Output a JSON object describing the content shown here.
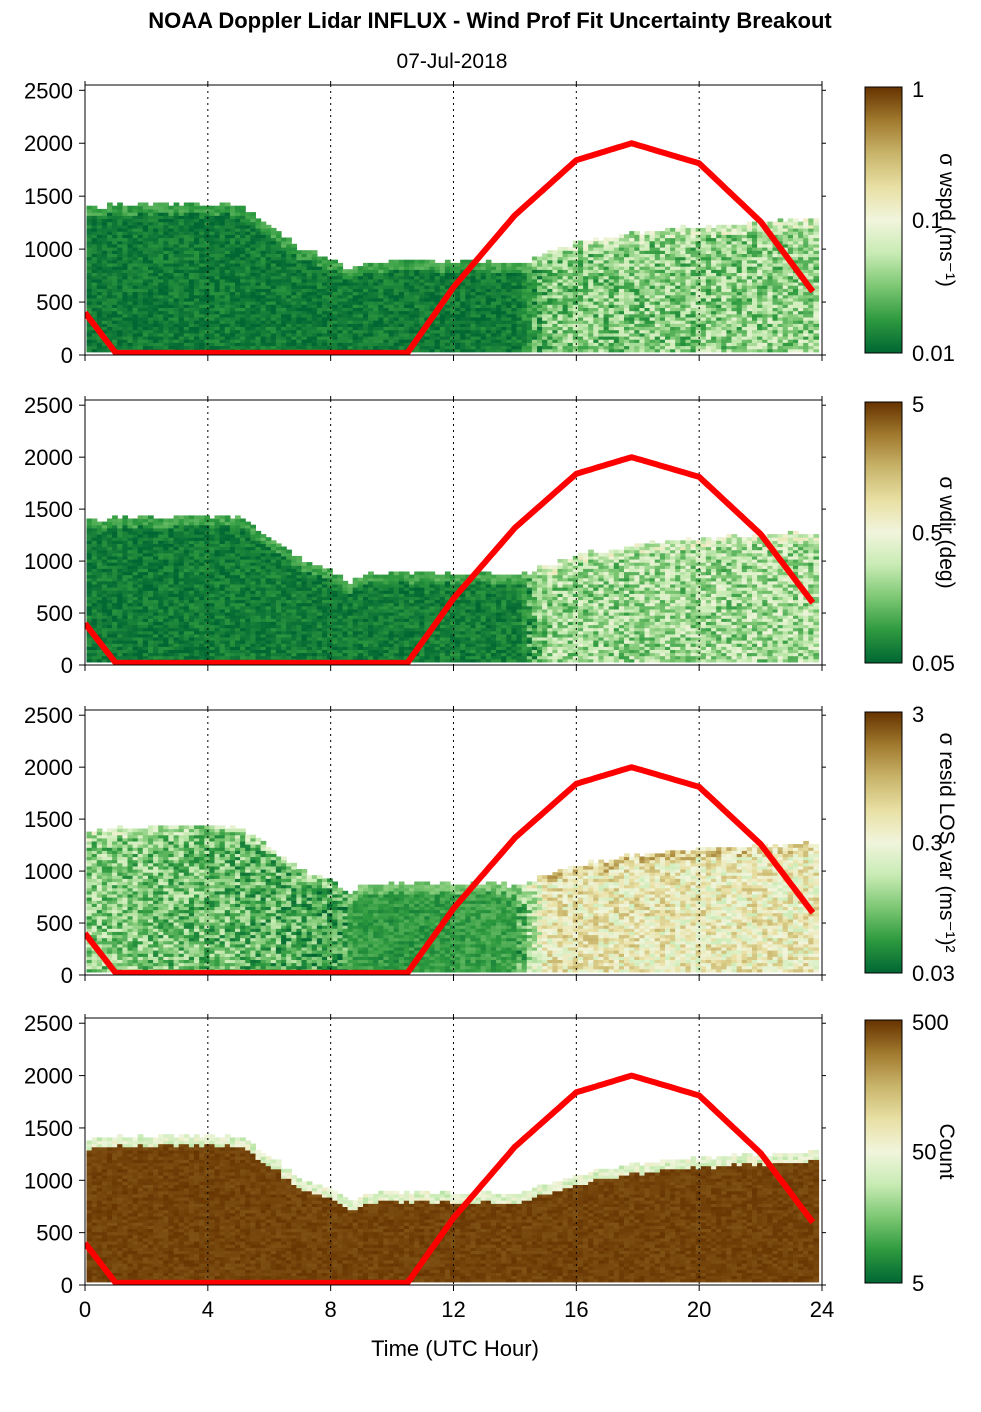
{
  "title": "NOAA Doppler Lidar INFLUX - Wind Prof Fit Uncertainty Breakout",
  "subtitle": "07-Jul-2018",
  "xlabel": "Time (UTC Hour)",
  "colors": {
    "sun_curve": "#ff0000",
    "colormap": [
      "#006633",
      "#2e9a3f",
      "#7cc773",
      "#c8ebb4",
      "#f1f5dc",
      "#e8dfa3",
      "#c8b46a",
      "#a0792e",
      "#663300"
    ]
  },
  "chart_data": [
    {
      "type": "heatmap",
      "panel": 1,
      "ylabel": "",
      "xlim": [
        0,
        24
      ],
      "ylim": [
        0,
        2550
      ],
      "xticks": [
        "0",
        "4",
        "8",
        "12",
        "16",
        "20",
        "24"
      ],
      "yticks": [
        "0",
        "500",
        "1000",
        "1500",
        "2000",
        "2500"
      ],
      "colorbar_label": "σ wspd (ms⁻¹)",
      "colorbar_ticks": [
        "1",
        "0.1",
        "0.01"
      ],
      "grid": "vertical dotted at 4-hour intervals",
      "data_top_height": {
        "time": [
          0,
          1,
          2,
          3,
          4,
          5,
          6,
          7,
          8,
          8.5,
          9,
          10,
          11,
          12,
          13,
          14,
          15,
          16,
          17,
          18,
          19,
          20,
          21,
          22,
          23,
          23.8
        ],
        "height": [
          1380,
          1400,
          1410,
          1410,
          1420,
          1400,
          1200,
          980,
          900,
          780,
          860,
          870,
          880,
          860,
          870,
          850,
          950,
          1050,
          1100,
          1150,
          1180,
          1200,
          1220,
          1240,
          1250,
          1260
        ]
      },
      "fill_level": {
        "time": [
          0,
          14,
          15,
          24
        ],
        "value": [
          0.05,
          0.05,
          0.25,
          0.3
        ]
      },
      "sun_elevation_curve": {
        "time": [
          0,
          1,
          2,
          4,
          6,
          8,
          10,
          10.5,
          12,
          14,
          16,
          17.8,
          20,
          22,
          23.8
        ],
        "height": [
          400,
          20,
          20,
          20,
          20,
          20,
          20,
          20,
          640,
          1320,
          1840,
          2000,
          1810,
          1260,
          560
        ]
      }
    },
    {
      "type": "heatmap",
      "panel": 2,
      "ylabel": "",
      "xlim": [
        0,
        24
      ],
      "ylim": [
        0,
        2550
      ],
      "xticks": [
        "0",
        "4",
        "8",
        "12",
        "16",
        "20",
        "24"
      ],
      "yticks": [
        "0",
        "500",
        "1000",
        "1500",
        "2000",
        "2500"
      ],
      "colorbar_label": "σ wdir (deg)",
      "colorbar_ticks": [
        "5",
        "0.5",
        "0.05"
      ],
      "grid": "vertical dotted at 4-hour intervals",
      "data_top_height": {
        "time": [
          0,
          1,
          2,
          3,
          4,
          5,
          6,
          7,
          8,
          8.5,
          9,
          10,
          11,
          12,
          13,
          14,
          15,
          16,
          17,
          18,
          19,
          20,
          21,
          22,
          23,
          23.8
        ],
        "height": [
          1380,
          1400,
          1410,
          1410,
          1420,
          1400,
          1200,
          980,
          900,
          780,
          860,
          870,
          880,
          860,
          870,
          850,
          950,
          1050,
          1100,
          1150,
          1180,
          1200,
          1220,
          1240,
          1250,
          1260
        ]
      },
      "fill_level": {
        "time": [
          0,
          14,
          15,
          24
        ],
        "value": [
          0.05,
          0.06,
          0.3,
          0.32
        ]
      },
      "sun_elevation_curve": {
        "time": [
          0,
          1,
          2,
          4,
          6,
          8,
          10,
          10.5,
          12,
          14,
          16,
          17.8,
          20,
          22,
          23.8
        ],
        "height": [
          400,
          20,
          20,
          20,
          20,
          20,
          20,
          20,
          640,
          1320,
          1840,
          2000,
          1810,
          1260,
          560
        ]
      }
    },
    {
      "type": "heatmap",
      "panel": 3,
      "ylabel": "",
      "xlim": [
        0,
        24
      ],
      "ylim": [
        0,
        2550
      ],
      "xticks": [
        "0",
        "4",
        "8",
        "12",
        "16",
        "20",
        "24"
      ],
      "yticks": [
        "0",
        "500",
        "1000",
        "1500",
        "2000",
        "2500"
      ],
      "colorbar_label": "σ resid LOS var (ms⁻¹)²",
      "colorbar_ticks": [
        "3",
        "0.3",
        "0.03"
      ],
      "grid": "vertical dotted at 4-hour intervals",
      "data_top_height": {
        "time": [
          0,
          1,
          2,
          3,
          4,
          5,
          6,
          7,
          8,
          8.5,
          9,
          10,
          11,
          12,
          13,
          14,
          15,
          16,
          17,
          18,
          19,
          20,
          21,
          22,
          23,
          23.8
        ],
        "height": [
          1380,
          1400,
          1410,
          1410,
          1420,
          1400,
          1200,
          980,
          900,
          780,
          860,
          870,
          880,
          860,
          870,
          850,
          950,
          1050,
          1100,
          1150,
          1180,
          1200,
          1220,
          1240,
          1250,
          1260
        ]
      },
      "fill_level": {
        "time": [
          0,
          6,
          10,
          14,
          15,
          24
        ],
        "value": [
          0.28,
          0.2,
          0.12,
          0.15,
          0.58,
          0.55
        ]
      },
      "sun_elevation_curve": {
        "time": [
          0,
          1,
          2,
          4,
          6,
          8,
          10,
          10.5,
          12,
          14,
          16,
          17.8,
          20,
          22,
          23.8
        ],
        "height": [
          400,
          20,
          20,
          20,
          20,
          20,
          20,
          20,
          640,
          1320,
          1840,
          2000,
          1810,
          1260,
          560
        ]
      }
    },
    {
      "type": "heatmap",
      "panel": 4,
      "ylabel": "",
      "xlim": [
        0,
        24
      ],
      "ylim": [
        0,
        2550
      ],
      "xticks": [
        "0",
        "4",
        "8",
        "12",
        "16",
        "20",
        "24"
      ],
      "yticks": [
        "0",
        "500",
        "1000",
        "1500",
        "2000",
        "2500"
      ],
      "colorbar_label": "Count",
      "colorbar_ticks": [
        "500",
        "50",
        "5"
      ],
      "grid": "vertical dotted at 4-hour intervals",
      "data_top_height": {
        "time": [
          0,
          1,
          2,
          3,
          4,
          5,
          6,
          7,
          8,
          8.5,
          9,
          10,
          11,
          12,
          13,
          14,
          15,
          16,
          17,
          18,
          19,
          20,
          21,
          22,
          23,
          23.8
        ],
        "height": [
          1380,
          1400,
          1410,
          1410,
          1420,
          1400,
          1200,
          980,
          900,
          780,
          860,
          870,
          880,
          860,
          870,
          850,
          950,
          1050,
          1100,
          1150,
          1180,
          1200,
          1220,
          1240,
          1250,
          1260
        ]
      },
      "fill_level": {
        "time": [
          0,
          24
        ],
        "value": [
          0.97,
          0.97
        ]
      },
      "sun_elevation_curve": {
        "time": [
          0,
          1,
          2,
          4,
          6,
          8,
          10,
          10.5,
          12,
          14,
          16,
          17.8,
          20,
          22,
          23.8
        ],
        "height": [
          400,
          20,
          20,
          20,
          20,
          20,
          20,
          20,
          640,
          1320,
          1840,
          2000,
          1810,
          1260,
          560
        ]
      }
    }
  ]
}
